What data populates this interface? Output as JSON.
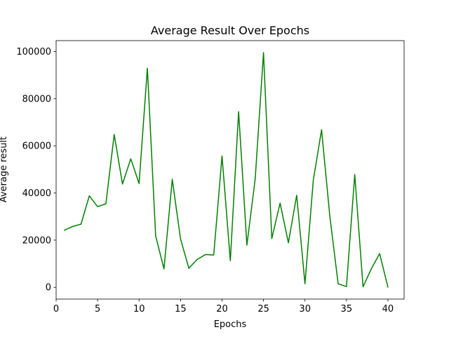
{
  "chart_data": {
    "type": "line",
    "title": "Average Result Over Epochs",
    "xlabel": "Epochs",
    "ylabel": "Average result",
    "xlim": [
      0.0,
      41.95
    ],
    "ylim": [
      -4980,
      104600
    ],
    "x_ticks": [
      0,
      5,
      10,
      15,
      20,
      25,
      30,
      35,
      40
    ],
    "y_ticks": [
      0,
      20000,
      40000,
      60000,
      80000,
      100000
    ],
    "grid": false,
    "legend": "none",
    "series": [
      {
        "color": "#008000",
        "x": [
          1,
          2,
          3,
          4,
          5,
          6,
          7,
          8,
          9,
          10,
          11,
          12,
          13,
          14,
          15,
          16,
          17,
          18,
          19,
          20,
          21,
          22,
          23,
          24,
          25,
          26,
          27,
          28,
          29,
          30,
          31,
          32,
          33,
          34,
          35,
          36,
          37,
          38,
          39,
          40
        ],
        "values": [
          24200,
          25800,
          26800,
          38800,
          34200,
          35400,
          64800,
          43800,
          54500,
          44000,
          92900,
          21800,
          7800,
          45800,
          20500,
          8100,
          11800,
          13900,
          13700,
          55700,
          11300,
          74500,
          17900,
          46000,
          99500,
          20700,
          35700,
          18900,
          39000,
          1500,
          45300,
          66800,
          30000,
          1500,
          300,
          47800,
          200,
          7900,
          14300,
          100
        ]
      }
    ]
  }
}
